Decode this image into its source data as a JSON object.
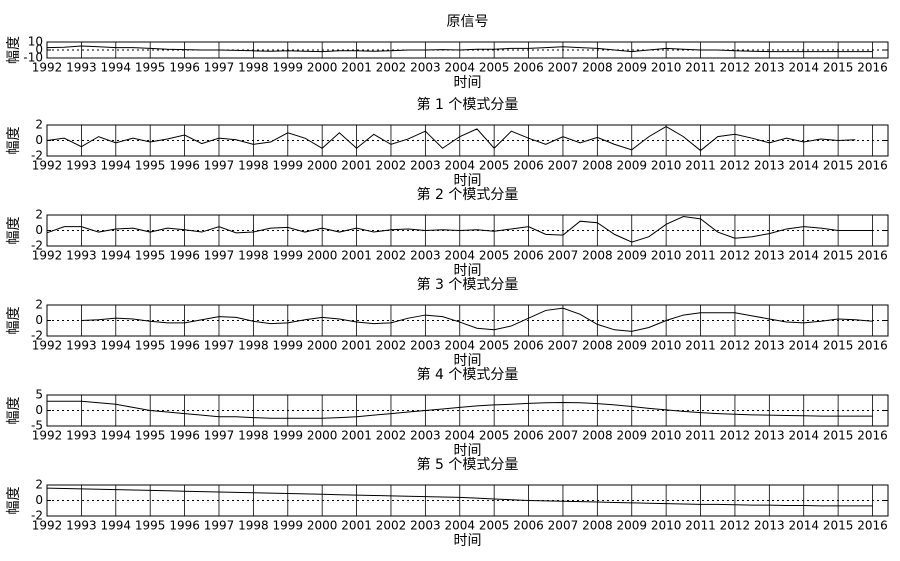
{
  "chart_data": [
    {
      "type": "line",
      "title": "原信号",
      "xlabel": "时间",
      "ylabel": "幅度",
      "color": "#000000",
      "grid": true,
      "reference_line": 0,
      "x": [
        1992,
        1992.5,
        1993,
        1993.5,
        1994,
        1994.5,
        1995,
        1995.5,
        1996,
        1996.5,
        1997,
        1997.5,
        1998,
        1998.5,
        1999,
        1999.5,
        2000,
        2000.5,
        2001,
        2001.5,
        2002,
        2002.5,
        2003,
        2003.5,
        2004,
        2004.5,
        2005,
        2005.5,
        2006,
        2006.5,
        2007,
        2007.5,
        2008,
        2008.5,
        2009,
        2009.5,
        2010,
        2010.5,
        2011,
        2011.5,
        2012,
        2012.5,
        2013,
        2013.5,
        2014,
        2014.5,
        2015,
        2015.5,
        2016
      ],
      "values": [
        3,
        3.5,
        5,
        4,
        3,
        3,
        2,
        1,
        0.5,
        0,
        0,
        -0.5,
        -1,
        -1.5,
        -1,
        -1.5,
        -2,
        -1,
        -1,
        -1.5,
        -1,
        0,
        0,
        0.5,
        0,
        1,
        1,
        2,
        2,
        3,
        4,
        3,
        2,
        0,
        -2,
        0,
        2,
        1,
        0,
        0,
        -1,
        -1.5,
        -2,
        -2,
        -2,
        -2,
        -2,
        -2,
        -2
      ],
      "xlim": [
        1992,
        2016.45
      ],
      "xticks": [
        1992,
        1993,
        1994,
        1995,
        1996,
        1997,
        1998,
        1999,
        2000,
        2001,
        2002,
        2003,
        2004,
        2005,
        2006,
        2007,
        2008,
        2009,
        2010,
        2011,
        2012,
        2013,
        2014,
        2015,
        2016
      ],
      "ylim": [
        -10,
        10
      ],
      "yticks": [
        -10,
        0,
        10
      ]
    },
    {
      "type": "line",
      "title": "第 1 个模式分量",
      "xlabel": "时间",
      "ylabel": "幅度",
      "color": "#000000",
      "grid": true,
      "reference_line": 0,
      "x": [
        1992,
        1992.5,
        1993,
        1993.5,
        1994,
        1994.5,
        1995,
        1995.5,
        1996,
        1996.5,
        1997,
        1997.5,
        1998,
        1998.5,
        1999,
        1999.5,
        2000,
        2000.5,
        2001,
        2001.5,
        2002,
        2002.5,
        2003,
        2003.5,
        2004,
        2004.5,
        2005,
        2005.5,
        2006,
        2006.5,
        2007,
        2007.5,
        2008,
        2008.5,
        2009,
        2009.5,
        2010,
        2010.5,
        2011,
        2011.5,
        2012,
        2012.5,
        2013,
        2013.5,
        2014,
        2014.5,
        2015,
        2015.5,
        2016
      ],
      "values": [
        0,
        0.3,
        -0.8,
        0.5,
        -0.3,
        0.3,
        -0.2,
        0.2,
        0.7,
        -0.4,
        0.3,
        0.1,
        -0.5,
        -0.2,
        1,
        0.3,
        -1,
        1,
        -1,
        0.8,
        -0.5,
        0.2,
        1.2,
        -1,
        0.5,
        1.5,
        -1,
        1.2,
        0.3,
        -0.5,
        0.5,
        -0.3,
        0.4,
        -0.5,
        -1.2,
        0.5,
        1.8,
        0.5,
        -1.3,
        0.5,
        0.8,
        0.3,
        -0.3,
        0.3,
        -0.2,
        0.2,
        0,
        0.1,
        null
      ],
      "xlim": [
        1992,
        2016.45
      ],
      "xticks": [
        1992,
        1993,
        1994,
        1995,
        1996,
        1997,
        1998,
        1999,
        2000,
        2001,
        2002,
        2003,
        2004,
        2005,
        2006,
        2007,
        2008,
        2009,
        2010,
        2011,
        2012,
        2013,
        2014,
        2015,
        2016
      ],
      "ylim": [
        -2,
        2
      ],
      "yticks": [
        -2,
        0,
        2
      ]
    },
    {
      "type": "line",
      "title": "第 2 个模式分量",
      "xlabel": "时间",
      "ylabel": "幅度",
      "color": "#000000",
      "grid": true,
      "reference_line": 0,
      "x": [
        1992,
        1992.5,
        1993,
        1993.5,
        1994,
        1994.5,
        1995,
        1995.5,
        1996,
        1996.5,
        1997,
        1997.5,
        1998,
        1998.5,
        1999,
        1999.5,
        2000,
        2000.5,
        2001,
        2001.5,
        2002,
        2002.5,
        2003,
        2003.5,
        2004,
        2004.5,
        2005,
        2005.5,
        2006,
        2006.5,
        2007,
        2007.5,
        2008,
        2008.5,
        2009,
        2009.5,
        2010,
        2010.5,
        2011,
        2011.5,
        2012,
        2012.5,
        2013,
        2013.5,
        2014,
        2014.5,
        2015,
        2015.5,
        2016
      ],
      "values": [
        -0.3,
        0.5,
        0.5,
        -0.2,
        0.2,
        0.3,
        -0.2,
        0.3,
        0.1,
        -0.2,
        0.5,
        -0.3,
        -0.2,
        0.3,
        0.4,
        -0.2,
        0.3,
        -0.2,
        0.3,
        -0.2,
        0.1,
        0.2,
        0,
        0.1,
        0,
        0.1,
        -0.1,
        0.2,
        0.5,
        -0.5,
        -0.6,
        1.2,
        1,
        -0.5,
        -1.5,
        -0.8,
        0.8,
        1.8,
        1.5,
        -0.2,
        -1,
        -0.8,
        -0.4,
        0.2,
        0.5,
        0.3,
        0,
        0,
        0
      ],
      "xlim": [
        1992,
        2016.45
      ],
      "xticks": [
        1992,
        1993,
        1994,
        1995,
        1996,
        1997,
        1998,
        1999,
        2000,
        2001,
        2002,
        2003,
        2004,
        2005,
        2006,
        2007,
        2008,
        2009,
        2010,
        2011,
        2012,
        2013,
        2014,
        2015,
        2016
      ],
      "ylim": [
        -2,
        2
      ],
      "yticks": [
        -2,
        0,
        2
      ]
    },
    {
      "type": "line",
      "title": "第 3 个模式分量",
      "xlabel": "时间",
      "ylabel": "幅度",
      "color": "#000000",
      "grid": true,
      "reference_line": 0,
      "x": [
        1992,
        1992.5,
        1993,
        1993.5,
        1994,
        1994.5,
        1995,
        1995.5,
        1996,
        1996.5,
        1997,
        1997.5,
        1998,
        1998.5,
        1999,
        1999.5,
        2000,
        2000.5,
        2001,
        2001.5,
        2002,
        2002.5,
        2003,
        2003.5,
        2004,
        2004.5,
        2005,
        2005.5,
        2006,
        2006.5,
        2007,
        2007.5,
        2008,
        2008.5,
        2009,
        2009.5,
        2010,
        2010.5,
        2011,
        2011.5,
        2012,
        2012.5,
        2013,
        2013.5,
        2014,
        2014.5,
        2015,
        2015.5,
        2016
      ],
      "values": [
        null,
        null,
        0,
        0.1,
        0.3,
        0.2,
        -0.1,
        -0.3,
        -0.3,
        0.1,
        0.5,
        0.4,
        -0.1,
        -0.4,
        -0.3,
        0.1,
        0.4,
        0.2,
        -0.2,
        -0.4,
        -0.3,
        0.3,
        0.7,
        0.5,
        -0.2,
        -1,
        -1.2,
        -0.7,
        0.3,
        1.3,
        1.6,
        0.8,
        -0.5,
        -1.2,
        -1.4,
        -0.9,
        0,
        0.7,
        1,
        1,
        1,
        0.6,
        0.2,
        -0.2,
        -0.3,
        -0.1,
        0.2,
        0.1,
        -0.1
      ],
      "xlim": [
        1992,
        2016.45
      ],
      "xticks": [
        1992,
        1993,
        1994,
        1995,
        1996,
        1997,
        1998,
        1999,
        2000,
        2001,
        2002,
        2003,
        2004,
        2005,
        2006,
        2007,
        2008,
        2009,
        2010,
        2011,
        2012,
        2013,
        2014,
        2015,
        2016
      ],
      "ylim": [
        -2,
        2
      ],
      "yticks": [
        -2,
        0,
        2
      ]
    },
    {
      "type": "line",
      "title": "第 4 个模式分量",
      "xlabel": "时间",
      "ylabel": "幅度",
      "color": "#000000",
      "grid": true,
      "reference_line": 0,
      "x": [
        1992,
        1992.5,
        1993,
        1993.5,
        1994,
        1994.5,
        1995,
        1995.5,
        1996,
        1996.5,
        1997,
        1997.5,
        1998,
        1998.5,
        1999,
        1999.5,
        2000,
        2000.5,
        2001,
        2001.5,
        2002,
        2002.5,
        2003,
        2003.5,
        2004,
        2004.5,
        2005,
        2005.5,
        2006,
        2006.5,
        2007,
        2007.5,
        2008,
        2008.5,
        2009,
        2009.5,
        2010,
        2010.5,
        2011,
        2011.5,
        2012,
        2012.5,
        2013,
        2013.5,
        2014,
        2014.5,
        2015,
        2015.5,
        2016
      ],
      "values": [
        3,
        3,
        3,
        2.5,
        2,
        1,
        0,
        -0.5,
        -1,
        -1.5,
        -2,
        -2,
        -2.3,
        -2.5,
        -2.5,
        -2.5,
        -2.5,
        -2.3,
        -2,
        -1.5,
        -1,
        -0.5,
        0,
        0.5,
        1,
        1.5,
        1.8,
        2,
        2.3,
        2.5,
        2.6,
        2.5,
        2.2,
        1.8,
        1.3,
        0.7,
        0.2,
        -0.3,
        -0.7,
        -1,
        -1.2,
        -1.4,
        -1.5,
        -1.6,
        -1.7,
        -1.8,
        -1.8,
        -1.8,
        -1.8
      ],
      "xlim": [
        1992,
        2016.45
      ],
      "xticks": [
        1992,
        1993,
        1994,
        1995,
        1996,
        1997,
        1998,
        1999,
        2000,
        2001,
        2002,
        2003,
        2004,
        2005,
        2006,
        2007,
        2008,
        2009,
        2010,
        2011,
        2012,
        2013,
        2014,
        2015,
        2016
      ],
      "ylim": [
        -5,
        5
      ],
      "yticks": [
        -5,
        0,
        5
      ]
    },
    {
      "type": "line",
      "title": "第 5 个模式分量",
      "xlabel": "时间",
      "ylabel": "幅度",
      "color": "#000000",
      "grid": true,
      "reference_line": 0,
      "x": [
        1992,
        1992.5,
        1993,
        1993.5,
        1994,
        1994.5,
        1995,
        1995.5,
        1996,
        1996.5,
        1997,
        1997.5,
        1998,
        1998.5,
        1999,
        1999.5,
        2000,
        2000.5,
        2001,
        2001.5,
        2002,
        2002.5,
        2003,
        2003.5,
        2004,
        2004.5,
        2005,
        2005.5,
        2006,
        2006.5,
        2007,
        2007.5,
        2008,
        2008.5,
        2009,
        2009.5,
        2010,
        2010.5,
        2011,
        2011.5,
        2012,
        2012.5,
        2013,
        2013.5,
        2014,
        2014.5,
        2015,
        2015.5,
        2016
      ],
      "values": [
        1.6,
        1.55,
        1.5,
        1.45,
        1.4,
        1.35,
        1.3,
        1.25,
        1.2,
        1.15,
        1.1,
        1.05,
        1.0,
        0.95,
        0.9,
        0.85,
        0.8,
        0.75,
        0.7,
        0.65,
        0.6,
        0.55,
        0.5,
        0.45,
        0.4,
        0.3,
        0.2,
        0.1,
        0,
        -0.05,
        -0.1,
        -0.15,
        -0.2,
        -0.25,
        -0.3,
        -0.35,
        -0.4,
        -0.45,
        -0.5,
        -0.5,
        -0.55,
        -0.6,
        -0.6,
        -0.65,
        -0.65,
        -0.7,
        -0.7,
        -0.7,
        -0.7
      ],
      "xlim": [
        1992,
        2016.45
      ],
      "xticks": [
        1992,
        1993,
        1994,
        1995,
        1996,
        1997,
        1998,
        1999,
        2000,
        2001,
        2002,
        2003,
        2004,
        2005,
        2006,
        2007,
        2008,
        2009,
        2010,
        2011,
        2012,
        2013,
        2014,
        2015,
        2016
      ],
      "ylim": [
        -2,
        2
      ],
      "yticks": [
        -2,
        0,
        2
      ]
    }
  ]
}
